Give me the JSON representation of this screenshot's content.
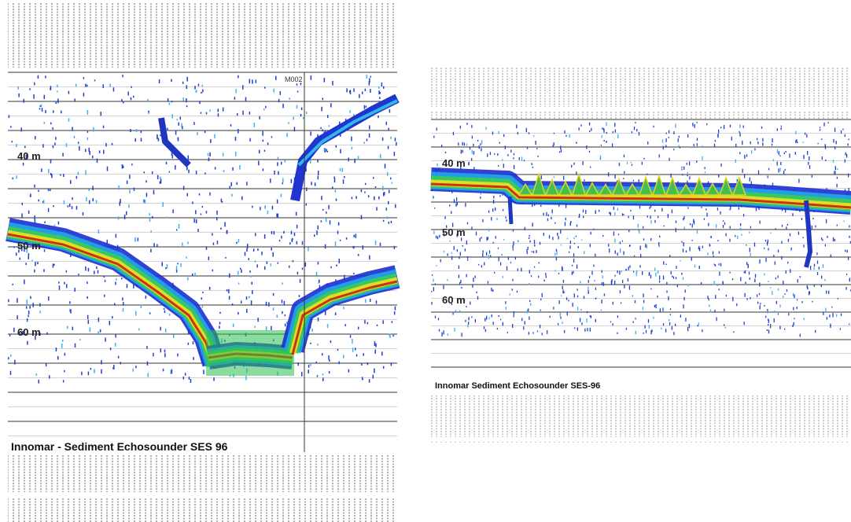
{
  "left_panel": {
    "marker": "M002",
    "depth_labels": [
      "40 m",
      "50 m",
      "60 m"
    ],
    "caption": "Innomar - Sediment Echosounder SES 96"
  },
  "right_panel": {
    "depth_labels": [
      "40 m",
      "50 m",
      "60 m"
    ],
    "caption": "Innomar Sediment Echosounder SES-96"
  }
}
